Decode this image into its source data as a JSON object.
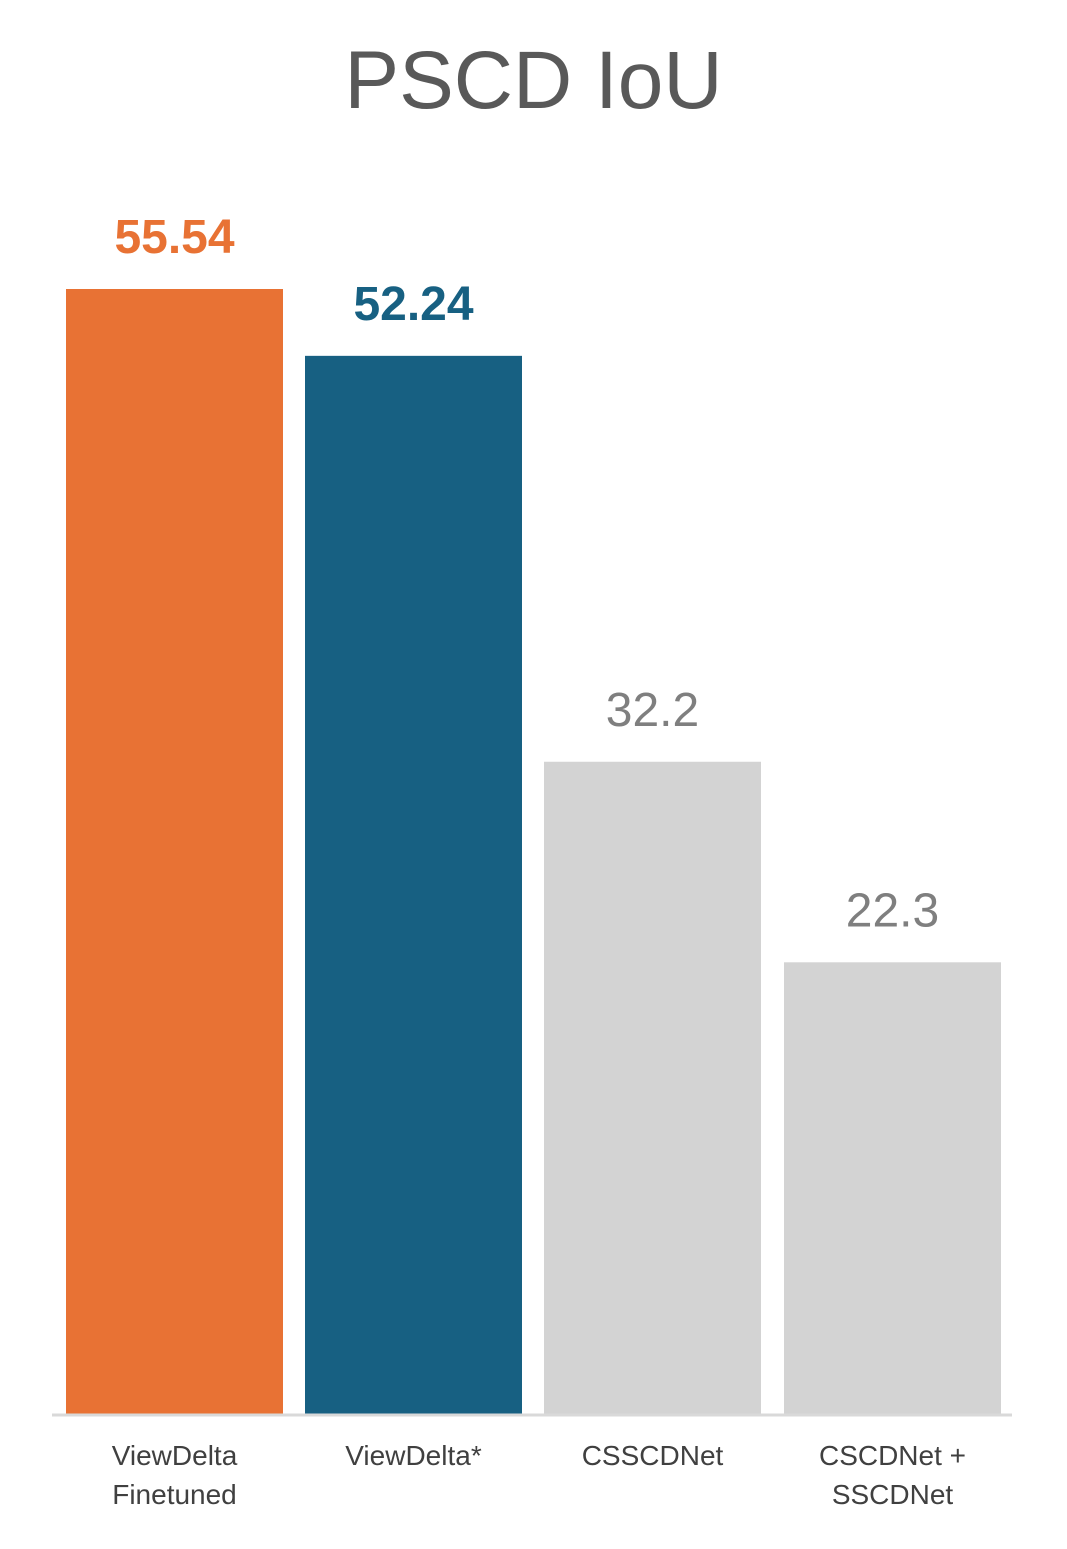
{
  "chart_data": {
    "type": "bar",
    "title": "PSCD IoU",
    "xlabel": "",
    "ylabel": "",
    "categories": [
      [
        "ViewDelta",
        "Finetuned"
      ],
      [
        "ViewDelta*"
      ],
      [
        "CSSCDNet"
      ],
      [
        "CSCDNet +",
        "SSCDNet"
      ]
    ],
    "values": [
      55.54,
      52.24,
      32.2,
      22.3
    ],
    "value_labels": [
      "55.54",
      "52.24",
      "32.2",
      "22.3"
    ],
    "bar_colors": [
      "#E87234",
      "#176082",
      "#D3D3D3",
      "#D3D3D3"
    ],
    "label_colors": [
      "#E87234",
      "#176082",
      "#7F7F7F",
      "#7F7F7F"
    ],
    "label_bold": [
      true,
      true,
      false,
      false
    ],
    "ylim": [
      0,
      55.54
    ],
    "grid": false,
    "legend": "none",
    "axis_color": "#D9D9D9"
  }
}
